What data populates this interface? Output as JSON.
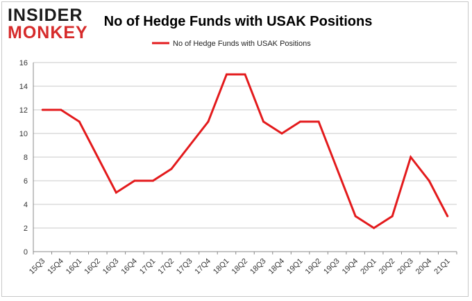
{
  "logo": {
    "line1": "INSIDER",
    "line2": "MONKEY"
  },
  "chart_data": {
    "type": "line",
    "title": "No of Hedge Funds with USAK Positions",
    "xlabel": "",
    "ylabel": "",
    "categories": [
      "15Q3",
      "15Q4",
      "16Q1",
      "16Q2",
      "16Q3",
      "16Q4",
      "17Q1",
      "17Q2",
      "17Q3",
      "17Q4",
      "18Q1",
      "18Q2",
      "18Q3",
      "18Q4",
      "19Q1",
      "19Q2",
      "19Q3",
      "19Q4",
      "20Q1",
      "20Q2",
      "20Q3",
      "20Q4",
      "21Q1"
    ],
    "series": [
      {
        "name": "No of Hedge Funds with USAK Positions",
        "color": "#e31a1c",
        "values": [
          12,
          12,
          11,
          8,
          5,
          6,
          6,
          7,
          9,
          11,
          15,
          15,
          11,
          10,
          11,
          11,
          7,
          3,
          2,
          3,
          8,
          6,
          3
        ]
      }
    ],
    "ylim": [
      0,
      16
    ],
    "yticks": [
      0,
      2,
      4,
      6,
      8,
      10,
      12,
      14,
      16
    ],
    "grid": true,
    "legend_position": "top-center"
  }
}
